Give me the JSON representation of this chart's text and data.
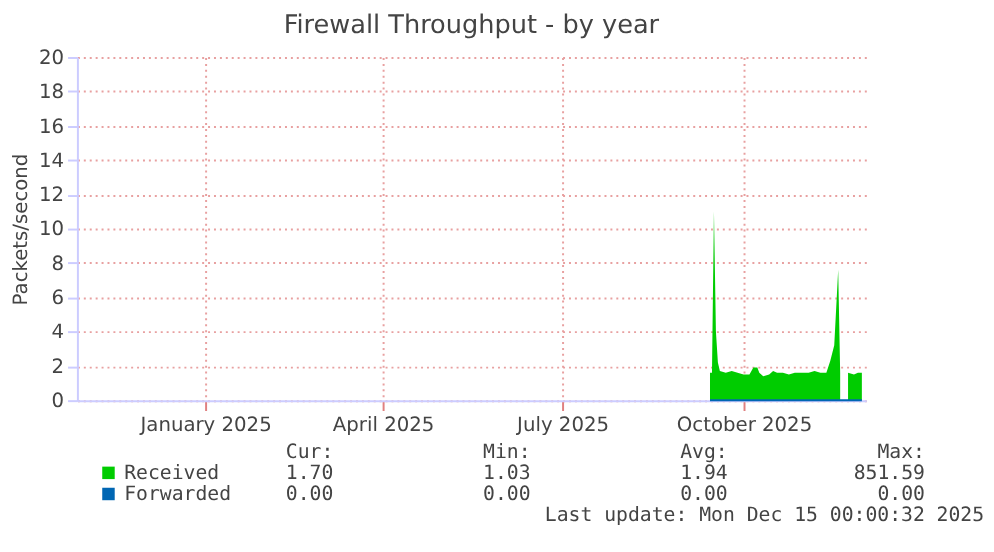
{
  "chart_data": {
    "type": "area",
    "title": "Firewall Throughput - by year",
    "ylabel": "Packets/second",
    "x": [
      "2025-09-14",
      "2025-09-15",
      "2025-09-16",
      "2025-09-17",
      "2025-09-18",
      "2025-09-19",
      "2025-09-22",
      "2025-09-25",
      "2025-09-28",
      "2025-10-01",
      "2025-10-04",
      "2025-10-06",
      "2025-10-08",
      "2025-10-09",
      "2025-10-11",
      "2025-10-14",
      "2025-10-16",
      "2025-10-18",
      "2025-10-21",
      "2025-10-24",
      "2025-10-27",
      "2025-10-31",
      "2025-11-03",
      "2025-11-06",
      "2025-11-09",
      "2025-11-12",
      "2025-11-14",
      "2025-11-16",
      "2025-11-18",
      "2025-11-19",
      "2025-11-20",
      "2025-11-22",
      "2025-11-23",
      "2025-11-26",
      "2025-11-28",
      "2025-11-30"
    ],
    "series": [
      {
        "name": "Received",
        "color": "#00cc00",
        "type": "area",
        "values": [
          1.6,
          1.6,
          11.0,
          4.0,
          2.2,
          1.7,
          1.6,
          1.7,
          1.6,
          1.5,
          1.5,
          1.9,
          1.9,
          1.6,
          1.4,
          1.5,
          1.7,
          1.6,
          1.6,
          1.5,
          1.6,
          1.6,
          1.6,
          1.7,
          1.6,
          1.6,
          2.3,
          3.2,
          7.6,
          1.6,
          null,
          null,
          1.6,
          1.5,
          1.6,
          1.6
        ]
      },
      {
        "name": "Forwarded",
        "color": "#0066b3",
        "type": "line",
        "values": [
          0,
          0,
          0,
          0,
          0,
          0,
          0,
          0,
          0,
          0,
          0,
          0,
          0,
          0,
          0,
          0,
          0,
          0,
          0,
          0,
          0,
          0,
          0,
          0,
          0,
          0,
          0,
          0,
          0,
          0,
          0,
          0,
          0,
          0,
          0,
          0
        ]
      }
    ],
    "xlim": [
      "2024-10-28",
      "2025-12-02"
    ],
    "xticks": [
      {
        "value": "2025-01-01",
        "label": "January 2025"
      },
      {
        "value": "2025-04-01",
        "label": "April 2025"
      },
      {
        "value": "2025-07-01",
        "label": "July 2025"
      },
      {
        "value": "2025-10-01",
        "label": "October 2025"
      }
    ],
    "ylim": [
      0,
      20
    ],
    "yticks": [
      0,
      2,
      4,
      6,
      8,
      10,
      12,
      14,
      16,
      18,
      20
    ],
    "grid": true,
    "legend": "bottom",
    "annotations": [
      "Cur:",
      "Min:",
      "Avg:",
      "Max:",
      "1.70",
      "1.03",
      "1.94",
      "851.59",
      "0.00",
      "0.00",
      "0.00",
      "0.00",
      "Last update: Mon Dec 15 00:00:32 2025"
    ]
  }
}
